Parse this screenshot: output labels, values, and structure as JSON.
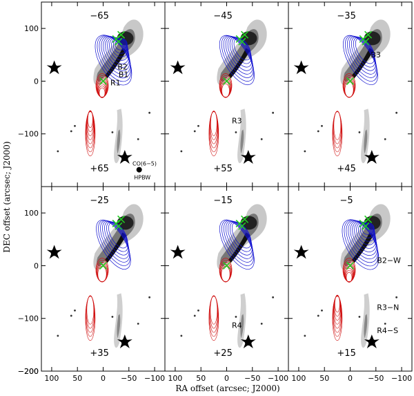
{
  "axes": {
    "ylabel": "DEC offset (arcsec; J2000)",
    "xlabel": "RA offset (arcsec; J2000)",
    "yticks": [
      "100",
      "0",
      "−100",
      "−200"
    ],
    "xticks": [
      "100",
      "50",
      "0",
      "−50",
      "−100"
    ]
  },
  "panels": [
    {
      "blue_vel": "−65",
      "red_vel": "+65",
      "labels": [
        "B2",
        "B1",
        "R1"
      ],
      "beam_label": "CO(6−5)",
      "beam_sub": "HPBW"
    },
    {
      "blue_vel": "−45",
      "red_vel": "+55",
      "labels": [
        "R3"
      ]
    },
    {
      "blue_vel": "−35",
      "red_vel": "+45",
      "labels": [
        "B3"
      ]
    },
    {
      "blue_vel": "−25",
      "red_vel": "+35",
      "labels": []
    },
    {
      "blue_vel": "−15",
      "red_vel": "+25",
      "labels": [
        "R4"
      ]
    },
    {
      "blue_vel": "−5",
      "red_vel": "+15",
      "labels": [
        "B2−W",
        "R3−N",
        "R4−S"
      ]
    }
  ],
  "colors": {
    "blue": "#1010d0",
    "red": "#d01010",
    "marker": "#22cc22",
    "frame": "#000000"
  }
}
